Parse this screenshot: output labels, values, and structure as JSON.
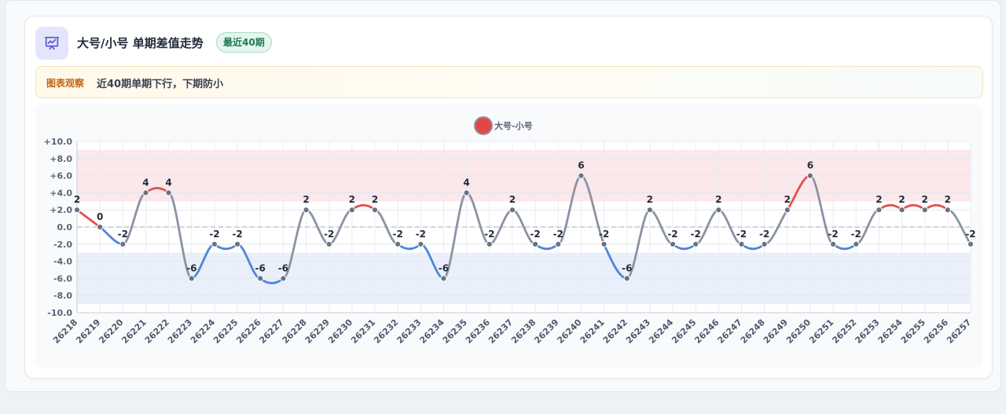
{
  "header": {
    "title": "大号/小号 单期差值走势",
    "badge": "最近40期",
    "icon": "presentation-chart-icon"
  },
  "observation": {
    "label": "图表观察",
    "text": "近40期单期下行，下期防小"
  },
  "colors": {
    "up": "#e05252",
    "down": "#4e86d8",
    "neutral": "#8b93a2",
    "band_high": "#f9e4e8",
    "band_low": "#e6ecfb",
    "accent": "#5a55d6"
  },
  "chart_data": {
    "type": "line",
    "categories": [
      "26218",
      "26219",
      "26220",
      "26221",
      "26222",
      "26223",
      "26224",
      "26225",
      "26226",
      "26227",
      "26228",
      "26229",
      "26230",
      "26231",
      "26232",
      "26233",
      "26234",
      "26235",
      "26236",
      "26237",
      "26238",
      "26239",
      "26240",
      "26241",
      "26242",
      "26243",
      "26244",
      "26245",
      "26246",
      "26247",
      "26248",
      "26249",
      "26250",
      "26251",
      "26252",
      "26253",
      "26254",
      "26255",
      "26256",
      "26257"
    ],
    "series": [
      {
        "name": "大号-小号",
        "values": [
          2,
          0,
          -2,
          4,
          4,
          -6,
          -2,
          -2,
          -6,
          -6,
          2,
          -2,
          2,
          2,
          -2,
          -2,
          -6,
          4,
          -2,
          2,
          -2,
          -2,
          6,
          -2,
          -6,
          2,
          -2,
          -2,
          2,
          -2,
          -2,
          2,
          6,
          -2,
          -2,
          2,
          2,
          2,
          2,
          -2
        ]
      }
    ],
    "y_ticks": [
      "+10.0",
      "+8.0",
      "+6.0",
      "+4.0",
      "+2.0",
      "0.0",
      "-2.0",
      "-4.0",
      "-6.0",
      "-8.0",
      "-10.0"
    ],
    "ylim": [
      -10,
      10
    ],
    "bands": [
      {
        "from": 3,
        "to": 9,
        "color": "#f9e4e8"
      },
      {
        "from": -9,
        "to": -3,
        "color": "#e6ecfb"
      }
    ],
    "legend_position": "top-center",
    "grid": true
  }
}
